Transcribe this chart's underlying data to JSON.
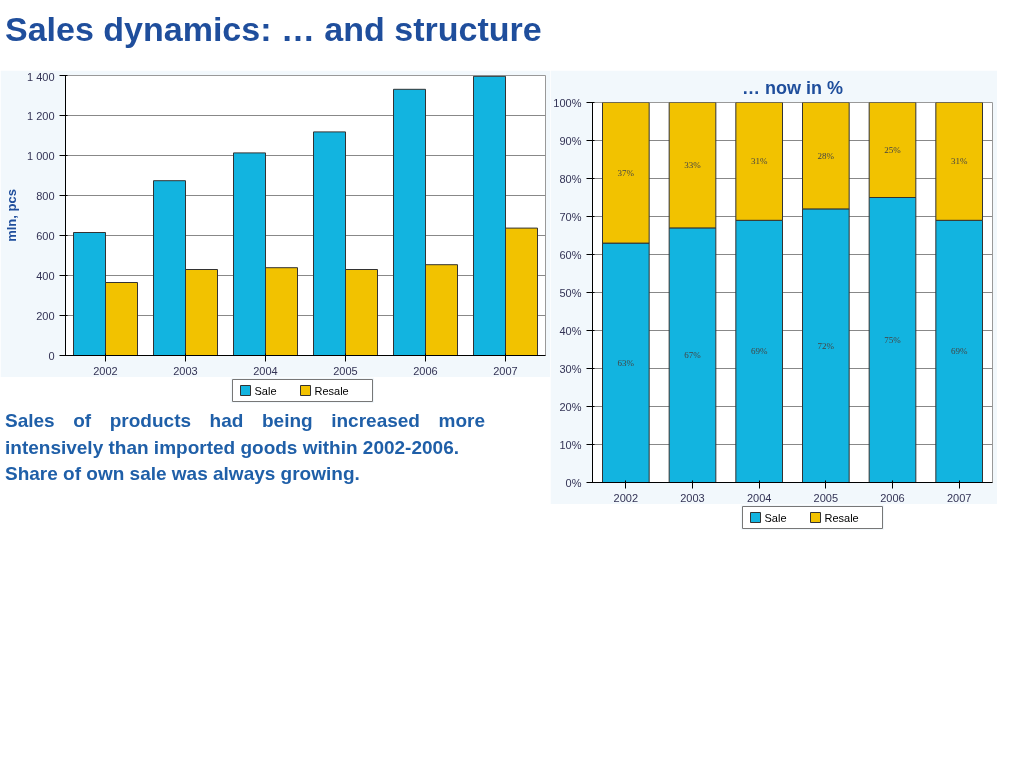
{
  "chart_data": [
    {
      "type": "bar",
      "title": "Sales dynamics: … and structure",
      "ylabel": "mln, pcs",
      "categories": [
        "2002",
        "2003",
        "2004",
        "2005",
        "2006",
        "2007"
      ],
      "series": [
        {
          "name": "Sale",
          "color": "#12b4e0",
          "values": [
            615,
            874,
            1013,
            1118,
            1331,
            1396
          ]
        },
        {
          "name": "Resale",
          "color": "#f2c200",
          "values": [
            365,
            430,
            439,
            430,
            454,
            637
          ]
        }
      ],
      "ylim": [
        0,
        1400
      ],
      "yticks": [
        0,
        200,
        400,
        600,
        800,
        {
          "value": 1000,
          "label": "1 000"
        },
        {
          "value": 1200,
          "label": "1 200"
        },
        {
          "value": 1400,
          "label": "1 400"
        }
      ],
      "grid": "y",
      "legend": "bottom",
      "annotations": [
        "Sales of products had being increased more intensively than imported goods within 2002-2006.",
        "Share of own sale was always growing."
      ]
    },
    {
      "type": "bar",
      "title": "… now in %",
      "stacked": true,
      "categories": [
        "2002",
        "2003",
        "2004",
        "2005",
        "2006",
        "2007"
      ],
      "series": [
        {
          "name": "Sale",
          "color": "#12b4e0",
          "values": [
            63,
            67,
            69,
            72,
            75,
            69
          ],
          "value_labels": [
            "63%",
            "67%",
            "69%",
            "72%",
            "75%",
            "69%"
          ]
        },
        {
          "name": "Resale",
          "color": "#f2c200",
          "values": [
            37,
            33,
            31,
            28,
            25,
            31
          ],
          "value_labels": [
            "37%",
            "33%",
            "31%",
            "28%",
            "25%",
            "31%"
          ]
        }
      ],
      "ylim": [
        0,
        100
      ],
      "yticks": [
        {
          "value": 0,
          "label": "0%"
        },
        {
          "value": 10,
          "label": "10%"
        },
        {
          "value": 20,
          "label": "20%"
        },
        {
          "value": 30,
          "label": "30%"
        },
        {
          "value": 40,
          "label": "40%"
        },
        {
          "value": 50,
          "label": "50%"
        },
        {
          "value": 60,
          "label": "60%"
        },
        {
          "value": 70,
          "label": "70%"
        },
        {
          "value": 80,
          "label": "80%"
        },
        {
          "value": 90,
          "label": "90%"
        },
        {
          "value": 100,
          "label": "100%"
        }
      ],
      "grid": "y",
      "legend": "bottom"
    }
  ]
}
